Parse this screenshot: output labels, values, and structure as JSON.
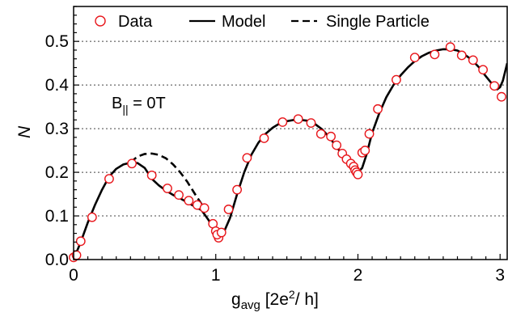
{
  "chart_data": {
    "type": "scatter",
    "title": "",
    "xlabel": "g_avg [2e^2/ h]",
    "xlabel_parts": {
      "main": "g",
      "sub": "avg",
      "rest1": " [2e",
      "sup": "2",
      "rest2": "/ h]"
    },
    "ylabel": "N",
    "xlim": [
      0,
      3.05
    ],
    "ylim": [
      0,
      0.58
    ],
    "x_ticks": [
      0,
      1,
      2,
      3
    ],
    "x_tick_labels": [
      "0",
      "1",
      "2",
      "3"
    ],
    "y_ticks": [
      0.0,
      0.1,
      0.2,
      0.3,
      0.4,
      0.5
    ],
    "y_tick_labels": [
      "0.0",
      "0.1",
      "0.2",
      "0.3",
      "0.4",
      "0.5"
    ],
    "grid": "horizontal dotted",
    "legend_placement": "top",
    "annotation": {
      "main": "B",
      "sub": "||",
      "rest": " = 0T"
    },
    "colors": {
      "data": "#e8161b",
      "model": "#000000",
      "single": "#000000"
    },
    "series": [
      {
        "name": "Data",
        "style": "open-circle",
        "x": [
          0.0,
          0.02,
          0.05,
          0.13,
          0.25,
          0.41,
          0.55,
          0.66,
          0.74,
          0.81,
          0.87,
          0.92,
          0.98,
          1.0,
          1.02,
          1.01,
          1.04,
          1.09,
          1.15,
          1.22,
          1.34,
          1.47,
          1.58,
          1.67,
          1.74,
          1.81,
          1.85,
          1.89,
          1.92,
          1.95,
          1.97,
          1.98,
          1.99,
          2.0,
          2.03,
          2.05,
          2.08,
          2.14,
          2.27,
          2.4,
          2.54,
          2.65,
          2.73,
          2.81,
          2.88,
          2.96,
          3.01
        ],
        "y": [
          0.005,
          0.01,
          0.042,
          0.097,
          0.185,
          0.22,
          0.193,
          0.163,
          0.148,
          0.135,
          0.125,
          0.118,
          0.082,
          0.065,
          0.05,
          0.057,
          0.062,
          0.115,
          0.16,
          0.233,
          0.278,
          0.315,
          0.322,
          0.313,
          0.288,
          0.282,
          0.262,
          0.243,
          0.23,
          0.22,
          0.213,
          0.205,
          0.2,
          0.195,
          0.245,
          0.25,
          0.288,
          0.345,
          0.412,
          0.463,
          0.47,
          0.487,
          0.468,
          0.457,
          0.435,
          0.398,
          0.373
        ]
      },
      {
        "name": "Model",
        "style": "solid",
        "x": [
          0.0,
          0.05,
          0.1,
          0.15,
          0.2,
          0.25,
          0.3,
          0.35,
          0.4,
          0.45,
          0.5,
          0.55,
          0.6,
          0.65,
          0.7,
          0.75,
          0.8,
          0.85,
          0.9,
          0.95,
          1.0,
          1.03,
          1.06,
          1.1,
          1.15,
          1.2,
          1.25,
          1.3,
          1.35,
          1.4,
          1.45,
          1.5,
          1.55,
          1.6,
          1.65,
          1.7,
          1.75,
          1.8,
          1.85,
          1.9,
          1.95,
          1.98,
          2.0,
          2.03,
          2.06,
          2.1,
          2.15,
          2.2,
          2.25,
          2.3,
          2.35,
          2.4,
          2.45,
          2.5,
          2.55,
          2.6,
          2.65,
          2.7,
          2.75,
          2.8,
          2.85,
          2.9,
          2.95,
          2.98,
          3.0,
          3.02,
          3.05
        ],
        "y": [
          0.0,
          0.04,
          0.085,
          0.125,
          0.16,
          0.19,
          0.208,
          0.218,
          0.222,
          0.221,
          0.21,
          0.185,
          0.17,
          0.158,
          0.148,
          0.14,
          0.131,
          0.122,
          0.113,
          0.09,
          0.06,
          0.055,
          0.065,
          0.095,
          0.15,
          0.2,
          0.24,
          0.268,
          0.288,
          0.302,
          0.312,
          0.317,
          0.32,
          0.32,
          0.318,
          0.31,
          0.298,
          0.28,
          0.258,
          0.237,
          0.218,
          0.203,
          0.2,
          0.21,
          0.24,
          0.29,
          0.335,
          0.372,
          0.4,
          0.422,
          0.44,
          0.455,
          0.466,
          0.474,
          0.479,
          0.482,
          0.482,
          0.479,
          0.47,
          0.458,
          0.441,
          0.42,
          0.4,
          0.39,
          0.395,
          0.41,
          0.45
        ]
      },
      {
        "name": "Single Particle",
        "style": "dashed",
        "x": [
          0.4,
          0.45,
          0.5,
          0.55,
          0.6,
          0.65,
          0.7,
          0.75,
          0.8,
          0.85,
          0.9
        ],
        "y": [
          0.223,
          0.236,
          0.242,
          0.243,
          0.24,
          0.232,
          0.218,
          0.2,
          0.178,
          0.152,
          0.127
        ]
      }
    ]
  }
}
